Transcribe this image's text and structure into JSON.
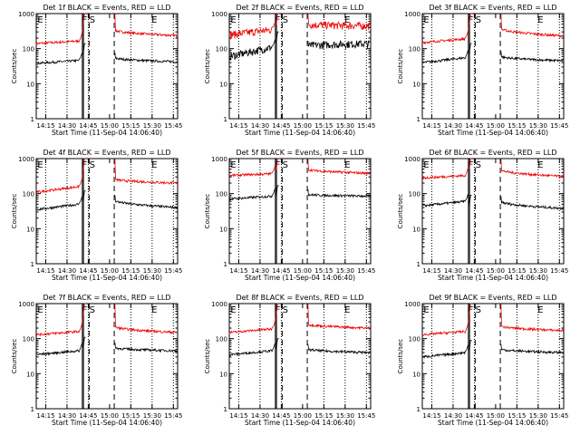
{
  "chart_data": {
    "type": "line",
    "xaxis": {
      "label": "Start Time (11-Sep-04 14:06:40)",
      "tick_labels": [
        "14:15",
        "14:30",
        "14:45",
        "15:00",
        "15:15",
        "15:30",
        "15:45"
      ],
      "tick_minutes": [
        15,
        30,
        45,
        60,
        75,
        90,
        105
      ],
      "range_minutes": [
        8.3,
        108
      ]
    },
    "yaxis": {
      "label": "Counts/sec",
      "scale": "log",
      "range": [
        1,
        1000
      ],
      "tick_labels": [
        "1",
        "10",
        "100",
        "1000"
      ]
    },
    "markers": {
      "dotted_at_minutes": [
        15,
        30,
        45,
        75,
        90,
        105
      ],
      "F_solid_minutes": [
        40.8,
        41.6
      ],
      "S_dashed_minutes": 45.6,
      "E_dashed_minutes": 63.3,
      "labels": [
        {
          "text": "E",
          "minute": 9.2
        },
        {
          "text": "F",
          "minute": 40.6
        },
        {
          "text": "S",
          "minute": 45.8
        },
        {
          "text": "E",
          "minute": 89.6
        }
      ]
    },
    "panels": [
      {
        "title": "Det 1f BLACK = Events, RED = LLD",
        "series": [
          {
            "color": "red",
            "values": {
              "pre": [
                140,
                165
              ],
              "rise_peak": 1000,
              "post": [
                340,
                235
              ]
            }
          },
          {
            "color": "black",
            "values": {
              "pre": [
                38,
                46
              ],
              "rise_peak": 140,
              "post": [
                55,
                42
              ]
            }
          }
        ]
      },
      {
        "title": "Det 2f BLACK = Events, RED = LLD",
        "series": [
          {
            "color": "red",
            "values": {
              "pre": [
                250,
                350
              ],
              "rise_peak": 1000,
              "post": [
                500,
                450
              ]
            }
          },
          {
            "color": "black",
            "values": {
              "pre": [
                60,
                110
              ],
              "rise_peak": 300,
              "post": [
                120,
                140
              ]
            }
          }
        ]
      },
      {
        "title": "Det 3f BLACK = Events, RED = LLD",
        "series": [
          {
            "color": "red",
            "values": {
              "pre": [
                150,
                190
              ],
              "rise_peak": 1000,
              "post": [
                380,
                230
              ]
            }
          },
          {
            "color": "black",
            "values": {
              "pre": [
                40,
                55
              ],
              "rise_peak": 140,
              "post": [
                60,
                45
              ]
            }
          }
        ]
      },
      {
        "title": "Det 4f BLACK = Events, RED = LLD",
        "series": [
          {
            "color": "red",
            "values": {
              "pre": [
                110,
                160
              ],
              "rise_peak": 1000,
              "post": [
                260,
                200
              ]
            }
          },
          {
            "color": "black",
            "values": {
              "pre": [
                35,
                50
              ],
              "rise_peak": 120,
              "post": [
                65,
                40
              ]
            }
          }
        ]
      },
      {
        "title": "Det 5f BLACK = Events, RED = LLD",
        "series": [
          {
            "color": "red",
            "values": {
              "pre": [
                330,
                370
              ],
              "rise_peak": 1000,
              "post": [
                500,
                380
              ]
            }
          },
          {
            "color": "black",
            "values": {
              "pre": [
                70,
                85
              ],
              "rise_peak": 170,
              "post": [
                95,
                85
              ]
            }
          }
        ]
      },
      {
        "title": "Det 6f BLACK = Events, RED = LLD",
        "series": [
          {
            "color": "red",
            "values": {
              "pre": [
                280,
                330
              ],
              "rise_peak": 1000,
              "post": [
                480,
                310
              ]
            }
          },
          {
            "color": "black",
            "values": {
              "pre": [
                45,
                60
              ],
              "rise_peak": 90,
              "post": [
                60,
                38
              ]
            }
          }
        ]
      },
      {
        "title": "Det 7f BLACK = Events, RED = LLD",
        "series": [
          {
            "color": "red",
            "values": {
              "pre": [
                130,
                160
              ],
              "rise_peak": 1000,
              "post": [
                220,
                150
              ]
            }
          },
          {
            "color": "black",
            "values": {
              "pre": [
                35,
                45
              ],
              "rise_peak": 110,
              "post": [
                55,
                45
              ]
            }
          }
        ]
      },
      {
        "title": "Det 8f BLACK = Events, RED = LLD",
        "series": [
          {
            "color": "red",
            "values": {
              "pre": [
                150,
                190
              ],
              "rise_peak": 1000,
              "post": [
                260,
                200
              ]
            }
          },
          {
            "color": "black",
            "values": {
              "pre": [
                35,
                45
              ],
              "rise_peak": 100,
              "post": [
                50,
                40
              ]
            }
          }
        ]
      },
      {
        "title": "Det 9f BLACK = Events, RED = LLD",
        "series": [
          {
            "color": "red",
            "values": {
              "pre": [
                130,
                160
              ],
              "rise_peak": 1000,
              "post": [
                230,
                170
              ]
            }
          },
          {
            "color": "black",
            "values": {
              "pre": [
                30,
                40
              ],
              "rise_peak": 90,
              "post": [
                50,
                40
              ]
            }
          }
        ]
      }
    ]
  }
}
